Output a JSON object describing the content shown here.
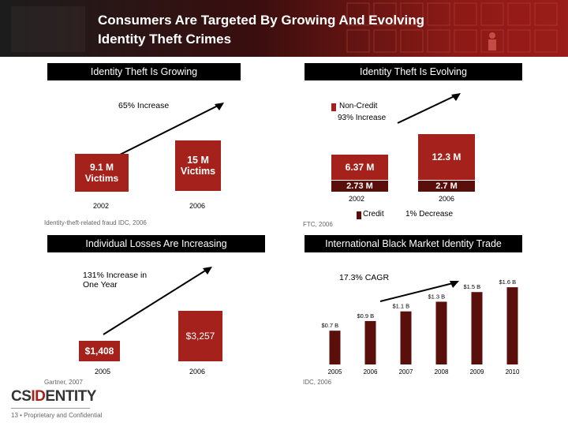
{
  "header": {
    "title_line1": "Consumers Are Targeted By Growing And Evolving",
    "title_line2": "Identity Theft Crimes"
  },
  "colors": {
    "accent": "#a4221b",
    "bar_dark": "#5a0f0b",
    "header_bg": "#1c1c1c"
  },
  "panel_growing": {
    "title": "Identity Theft Is Growing",
    "increase": "65% Increase",
    "box_2002": "9.1 M\nVictims",
    "box_2006": "15 M\nVictims",
    "year_2002": "2002",
    "year_2006": "2006",
    "source": "Identity-theft-related fraud IDC, 2006"
  },
  "panel_evolving": {
    "title": "Identity Theft Is Evolving",
    "noncredit_label": "Non-Credit",
    "noncredit_increase": "93% Increase",
    "noncredit_2002": "6.37 M",
    "noncredit_2006": "12.3 M",
    "credit_2002": "2.73 M",
    "credit_2006": "2.7 M",
    "year_2002": "2002",
    "year_2006": "2006",
    "credit_label": "Credit",
    "credit_decrease": "1% Decrease",
    "source": "FTC, 2006"
  },
  "panel_losses": {
    "title": "Individual Losses Are Increasing",
    "increase_line1": "131% Increase in",
    "increase_line2": "One Year",
    "value_2005": "$1,408",
    "value_2006": "$3,257",
    "year_2005": "2005",
    "year_2006": "2006",
    "source": "Gartner, 2007"
  },
  "chart_data": {
    "type": "bar",
    "title": "International Black Market Identity Trade",
    "annotation": "17.3% CAGR",
    "categories": [
      "2005",
      "2006",
      "2007",
      "2008",
      "2009",
      "2010"
    ],
    "values": [
      0.7,
      0.9,
      1.1,
      1.3,
      1.5,
      1.6
    ],
    "labels": [
      "$0.7 B",
      "$0.9 B",
      "$1.1 B",
      "$1.3 B",
      "$1.5 B",
      "$1.6 B"
    ],
    "unit": "$ Billions",
    "source": "IDC, 2006"
  },
  "footer": {
    "logo_part1": "CS",
    "logo_part2": "ID",
    "logo_part3": "ENTITY",
    "page_text": "13  •  Proprietary and Confidential"
  }
}
